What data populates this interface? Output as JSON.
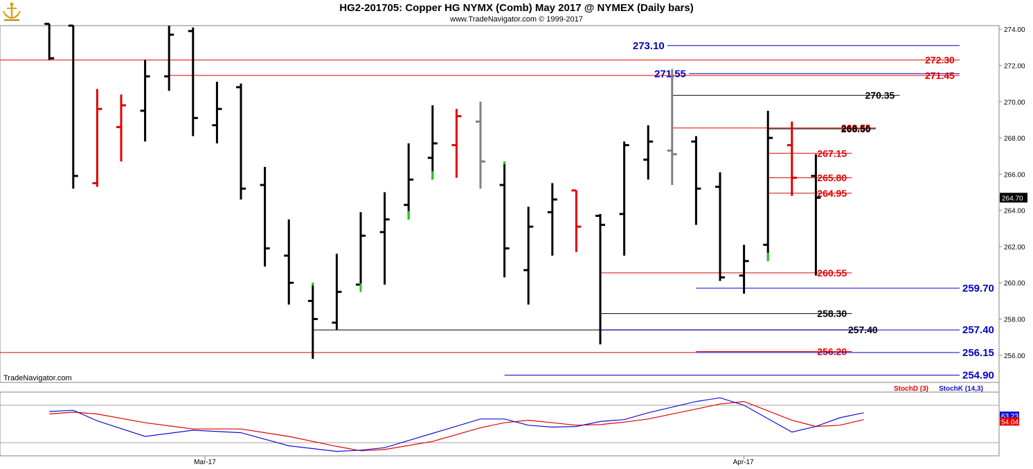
{
  "header": {
    "title": "HG2-201705:  Copper HG NYMX (Comb) May 2017 @ NYMEX  (Daily bars)",
    "subtitle": "www.TradeNavigator.com © 1999-2017",
    "watermark": "TradeNavigator.com"
  },
  "colors": {
    "bull": "#000000",
    "bear": "#e00000",
    "neutral": "#808080",
    "highlight": "#22cc22",
    "red_level": "#e00000",
    "blue_level": "#0000c8",
    "black_level": "#000000",
    "stoch_k": "#1010d0",
    "stoch_d": "#e00000"
  },
  "chart_data": [
    {
      "type": "ohlc",
      "name": "Daily bars",
      "y_axis": {
        "min": 254.5,
        "max": 274.2,
        "ticks": [
          "256.00",
          "258.00",
          "260.00",
          "262.00",
          "264.00",
          "266.00",
          "268.00",
          "270.00",
          "272.00",
          "274.00"
        ],
        "tick_values": [
          256,
          258,
          260,
          262,
          264,
          266,
          268,
          270,
          272,
          274
        ]
      },
      "x_labels": [
        {
          "label": "Mar-17",
          "bar_index": 6
        },
        {
          "label": "Apr-17",
          "bar_index": 28.5
        }
      ],
      "current_price": "264.70",
      "bars": [
        {
          "i": -0.5,
          "o": 274.3,
          "h": 274.3,
          "l": 272.3,
          "c": 272.4,
          "color": "black"
        },
        {
          "i": 0.5,
          "o": 274.2,
          "h": 274.2,
          "l": 265.2,
          "c": 265.9,
          "color": "black"
        },
        {
          "i": 1.5,
          "o": 265.5,
          "h": 270.7,
          "l": 265.3,
          "c": 269.6,
          "color": "red"
        },
        {
          "i": 2.5,
          "o": 268.6,
          "h": 270.4,
          "l": 266.7,
          "c": 269.8,
          "color": "red"
        },
        {
          "i": 3.5,
          "o": 269.5,
          "h": 272.3,
          "l": 267.8,
          "c": 271.4,
          "color": "black"
        },
        {
          "i": 4.5,
          "o": 271.4,
          "h": 274.2,
          "l": 270.6,
          "c": 273.7,
          "color": "black"
        },
        {
          "i": 5.5,
          "o": 273.9,
          "h": 274.1,
          "l": 268.1,
          "c": 269.1,
          "color": "black"
        },
        {
          "i": 6.5,
          "o": 268.7,
          "h": 271.1,
          "l": 267.7,
          "c": 269.6,
          "color": "black"
        },
        {
          "i": 7.5,
          "o": 270.8,
          "h": 271.0,
          "l": 264.6,
          "c": 265.2,
          "color": "black"
        },
        {
          "i": 8.5,
          "o": 265.4,
          "h": 266.4,
          "l": 260.9,
          "c": 261.9,
          "color": "black"
        },
        {
          "i": 9.5,
          "o": 261.5,
          "h": 263.5,
          "l": 258.8,
          "c": 260.0,
          "color": "black"
        },
        {
          "i": 10.5,
          "o": 259.0,
          "h": 260.0,
          "l": 255.8,
          "c": 258.0,
          "color": "black",
          "highlight_top": true
        },
        {
          "i": 11.5,
          "o": 257.8,
          "h": 261.6,
          "l": 257.4,
          "c": 259.5,
          "color": "black"
        },
        {
          "i": 12.5,
          "o": 259.9,
          "h": 263.9,
          "l": 259.5,
          "c": 262.6,
          "color": "black",
          "highlight_bottom": true
        },
        {
          "i": 13.5,
          "o": 262.8,
          "h": 265.0,
          "l": 259.9,
          "c": 263.5,
          "color": "black"
        },
        {
          "i": 14.5,
          "o": 264.3,
          "h": 267.7,
          "l": 263.5,
          "c": 265.7,
          "color": "black",
          "highlight_bottom": true
        },
        {
          "i": 15.5,
          "o": 266.9,
          "h": 269.8,
          "l": 265.7,
          "c": 267.7,
          "color": "black",
          "highlight_bottom": true
        },
        {
          "i": 16.5,
          "o": 267.6,
          "h": 269.6,
          "l": 265.8,
          "c": 269.2,
          "color": "red"
        },
        {
          "i": 17.5,
          "o": 268.9,
          "h": 270.0,
          "l": 265.2,
          "c": 266.7,
          "color": "gray"
        },
        {
          "i": 18.5,
          "o": 265.4,
          "h": 266.7,
          "l": 260.3,
          "c": 261.9,
          "color": "black",
          "highlight_top": true
        },
        {
          "i": 19.5,
          "o": 260.7,
          "h": 264.2,
          "l": 258.8,
          "c": 263.1,
          "color": "black"
        },
        {
          "i": 20.5,
          "o": 263.9,
          "h": 265.5,
          "l": 261.5,
          "c": 264.6,
          "color": "black"
        },
        {
          "i": 21.5,
          "o": 265.1,
          "h": 265.1,
          "l": 261.7,
          "c": 263.1,
          "color": "red"
        },
        {
          "i": 22.5,
          "o": 263.7,
          "h": 263.8,
          "l": 256.6,
          "c": 263.2,
          "color": "black"
        },
        {
          "i": 23.5,
          "o": 263.8,
          "h": 267.8,
          "l": 261.5,
          "c": 267.6,
          "color": "black"
        },
        {
          "i": 24.5,
          "o": 266.8,
          "h": 268.7,
          "l": 265.7,
          "c": 267.8,
          "color": "black"
        },
        {
          "i": 25.5,
          "o": 267.3,
          "h": 271.8,
          "l": 265.4,
          "c": 267.1,
          "color": "gray"
        },
        {
          "i": 26.5,
          "o": 267.8,
          "h": 268.1,
          "l": 263.2,
          "c": 265.2,
          "color": "black"
        },
        {
          "i": 27.5,
          "o": 265.3,
          "h": 266.1,
          "l": 260.1,
          "c": 260.3,
          "color": "black"
        },
        {
          "i": 28.5,
          "o": 260.4,
          "h": 262.1,
          "l": 259.4,
          "c": 261.2,
          "color": "black"
        },
        {
          "i": 29.5,
          "o": 262.1,
          "h": 269.5,
          "l": 261.2,
          "c": 268.0,
          "color": "black",
          "highlight_bottom": true
        },
        {
          "i": 30.5,
          "o": 267.6,
          "h": 268.9,
          "l": 264.8,
          "c": 265.8,
          "color": "red"
        },
        {
          "i": 31.5,
          "o": 265.9,
          "h": 267.1,
          "l": 260.4,
          "c": 264.7,
          "color": "black"
        }
      ],
      "levels": [
        {
          "price": 273.1,
          "label": "273.10",
          "color": "blue",
          "x_start": 25.3,
          "x_end": 37.5,
          "label_side": "left"
        },
        {
          "price": 272.3,
          "label": "272.30",
          "color": "red",
          "x_start": -3,
          "x_end": 37.5,
          "label_side": "right"
        },
        {
          "price": 271.55,
          "label": "271.55",
          "color": "blue",
          "x_start": 26.2,
          "x_end": 37.5,
          "label_side": "left"
        },
        {
          "price": 271.45,
          "label": "271.45",
          "color": "red",
          "x_start": 4.5,
          "x_end": 37.5,
          "label_side": "right"
        },
        {
          "price": 270.35,
          "label": "270.35",
          "color": "black",
          "x_start": 25.5,
          "x_end": 35.0,
          "label_side": "right"
        },
        {
          "price": 268.55,
          "label": "268.55",
          "color": "red",
          "x_start": 25.5,
          "x_end": 34.0,
          "label_side": "right"
        },
        {
          "price": 268.5,
          "label": "268.50",
          "color": "black",
          "x_start": 29.5,
          "x_end": 34.0,
          "label_side": "right"
        },
        {
          "price": 267.15,
          "label": "267.15",
          "color": "red",
          "x_start": 29.5,
          "x_end": 33.0,
          "label_side": "right"
        },
        {
          "price": 265.8,
          "label": "265.80",
          "color": "red",
          "x_start": 29.5,
          "x_end": 33.0,
          "label_side": "right"
        },
        {
          "price": 264.95,
          "label": "264.95",
          "color": "red",
          "x_start": 29.5,
          "x_end": 33.0,
          "label_side": "right"
        },
        {
          "price": 260.55,
          "label": "260.55",
          "color": "red",
          "x_start": 22.5,
          "x_end": 33.0,
          "label_side": "right"
        },
        {
          "price": 259.7,
          "label": "259.70",
          "color": "blue",
          "x_start": 26.5,
          "x_end": 37.5,
          "label_side": "right"
        },
        {
          "price": 258.3,
          "label": "258.30",
          "color": "black",
          "x_start": 22.5,
          "x_end": 33.0,
          "label_side": "right"
        },
        {
          "price": 257.4,
          "label": "257.40",
          "color": "black",
          "x_start": 10.5,
          "x_end": 34.0,
          "label_side": "right"
        },
        {
          "price": 257.4,
          "label": "257.40",
          "color": "blue",
          "x_start": 22.5,
          "x_end": 37.5,
          "label_side": "right"
        },
        {
          "price": 256.2,
          "label": "256.20",
          "color": "red",
          "x_start": 26.5,
          "x_end": 33.0,
          "label_side": "right"
        },
        {
          "price": 256.15,
          "label": "256.15",
          "color": "blue",
          "x_start": 26.5,
          "x_end": 37.5,
          "label_side": "right"
        },
        {
          "price": 256.15,
          "label": "",
          "color": "red",
          "x_start": -3,
          "x_end": 26.5,
          "label_side": "none"
        },
        {
          "price": 254.9,
          "label": "254.90",
          "color": "blue",
          "x_start": 18.5,
          "x_end": 37.5,
          "label_side": "right"
        }
      ]
    },
    {
      "type": "line",
      "name": "Stochastic",
      "legend": [
        {
          "label": "StochD (3)",
          "color": "red"
        },
        {
          "label": "StochK (14,3)",
          "color": "blue"
        }
      ],
      "y_range": [
        0,
        100
      ],
      "ref_levels": [
        20,
        80
      ],
      "last_values": {
        "k": "63.23",
        "d": "54.04"
      },
      "k_values": [
        [
          -0.5,
          70
        ],
        [
          0.5,
          72
        ],
        [
          1.5,
          55
        ],
        [
          3.5,
          30
        ],
        [
          5.5,
          40
        ],
        [
          7.5,
          36
        ],
        [
          9.5,
          15
        ],
        [
          11.5,
          6
        ],
        [
          12.5,
          8
        ],
        [
          13.5,
          12
        ],
        [
          15.5,
          35
        ],
        [
          17.5,
          58
        ],
        [
          18.5,
          58
        ],
        [
          19.5,
          48
        ],
        [
          20.5,
          45
        ],
        [
          21.5,
          46
        ],
        [
          22.5,
          54
        ],
        [
          23.5,
          57
        ],
        [
          24.5,
          68
        ],
        [
          26.5,
          86
        ],
        [
          27.5,
          92
        ],
        [
          28.5,
          80
        ],
        [
          30.5,
          37
        ],
        [
          31.5,
          46
        ],
        [
          32.5,
          60
        ],
        [
          33.5,
          68
        ]
      ],
      "d_values": [
        [
          -0.5,
          66
        ],
        [
          0.5,
          69
        ],
        [
          1.5,
          66
        ],
        [
          3.5,
          52
        ],
        [
          5.5,
          42
        ],
        [
          7.5,
          42
        ],
        [
          9.5,
          30
        ],
        [
          11.5,
          14
        ],
        [
          12.5,
          7
        ],
        [
          13.5,
          9
        ],
        [
          15.5,
          22
        ],
        [
          17.5,
          44
        ],
        [
          18.5,
          52
        ],
        [
          19.5,
          56
        ],
        [
          20.5,
          52
        ],
        [
          21.5,
          48
        ],
        [
          22.5,
          49
        ],
        [
          23.5,
          53
        ],
        [
          24.5,
          58
        ],
        [
          26.5,
          74
        ],
        [
          27.5,
          82
        ],
        [
          28.5,
          86
        ],
        [
          30.5,
          56
        ],
        [
          31.5,
          46
        ],
        [
          32.5,
          48
        ],
        [
          33.5,
          57
        ]
      ]
    }
  ]
}
